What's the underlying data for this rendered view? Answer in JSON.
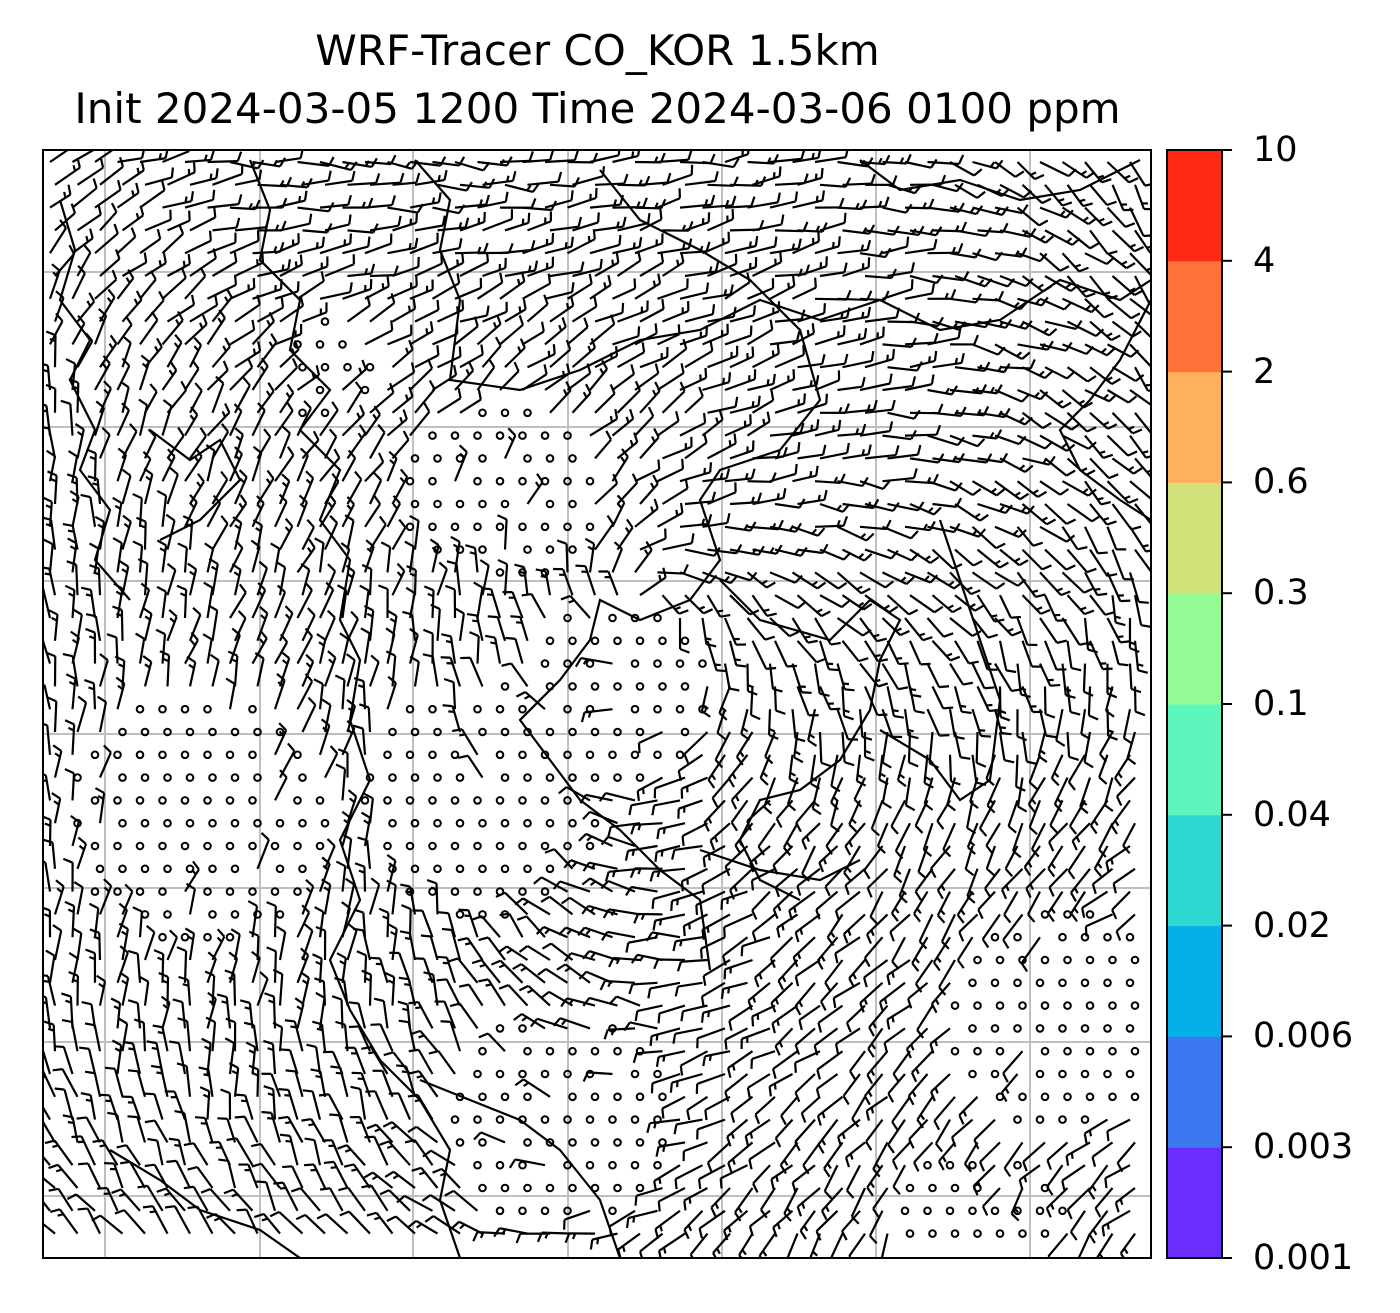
{
  "title_line1": "WRF-Tracer CO_KOR 1.5km",
  "title_line2": "Init 2024-03-05 1200 Time 2024-03-06 0100 ppm",
  "map": {
    "gridlines": "on",
    "line_color": "#000000",
    "grid_color": "#bfbfbf",
    "calm_marker": "open-circle",
    "wind_symbol": "wind-barb"
  },
  "colorbar": {
    "unit": "ppm",
    "ticks": [
      "0.001",
      "0.003",
      "0.006",
      "0.02",
      "0.04",
      "0.1",
      "0.3",
      "0.6",
      "2",
      "4",
      "10"
    ],
    "colors": [
      "#6a2cff",
      "#3a78f2",
      "#04b0ea",
      "#2ed8d2",
      "#5df7bd",
      "#94fb95",
      "#d2e07a",
      "#ffb05e",
      "#ff7238",
      "#ff2a13"
    ]
  }
}
